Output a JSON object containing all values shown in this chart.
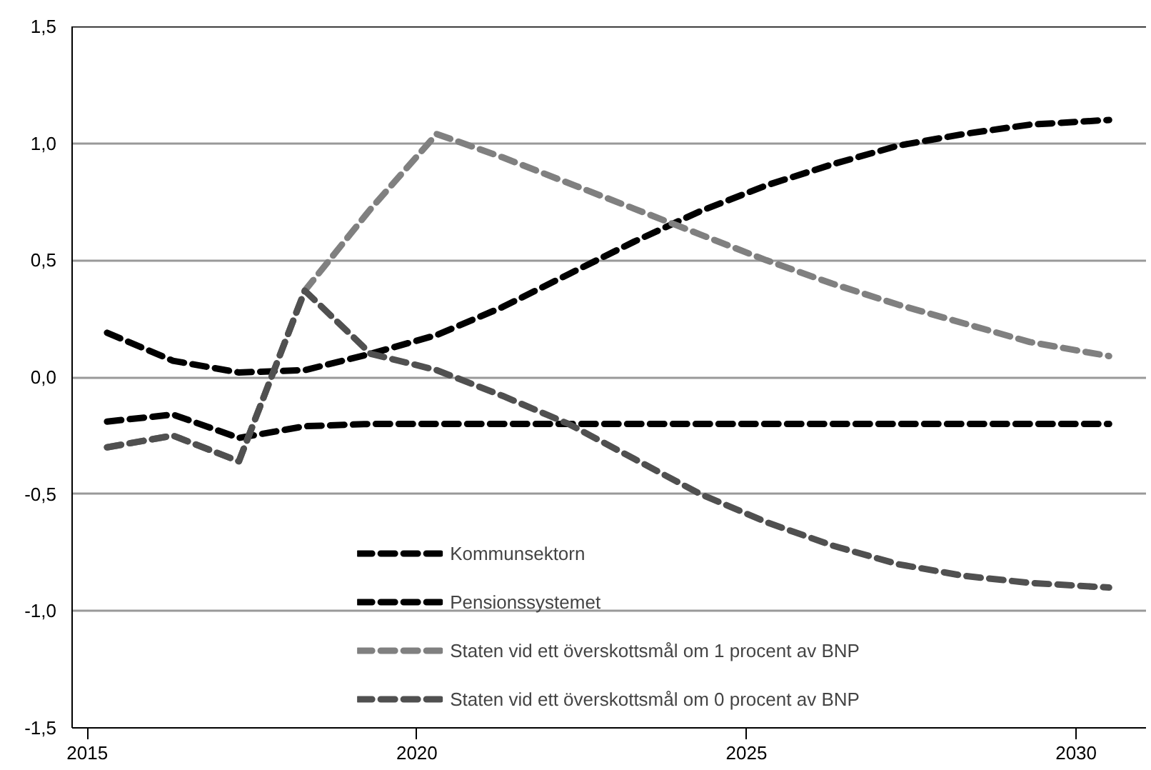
{
  "chart_data": {
    "type": "line",
    "x": [
      2015.3,
      2016.3,
      2017.3,
      2018.3,
      2019.3,
      2020.3,
      2021.3,
      2022.3,
      2023.3,
      2024.3,
      2025.3,
      2026.3,
      2027.3,
      2028.3,
      2029.3,
      2030.5
    ],
    "series": [
      {
        "name": "Kommunsektorn",
        "color": "#000000",
        "values": [
          0.19,
          0.07,
          0.02,
          0.03,
          0.1,
          0.18,
          0.3,
          0.44,
          0.58,
          0.71,
          0.82,
          0.91,
          0.99,
          1.04,
          1.08,
          1.1
        ]
      },
      {
        "name": "Pensionssystemet",
        "color": "#000000",
        "values": [
          -0.19,
          -0.16,
          -0.26,
          -0.21,
          -0.2,
          -0.2,
          -0.2,
          -0.2,
          -0.2,
          -0.2,
          -0.2,
          -0.2,
          -0.2,
          -0.2,
          -0.2,
          -0.2
        ]
      },
      {
        "name": "Staten vid ett överskottsmål om 1 procent av BNP",
        "color": "#808080",
        "values": [
          -0.3,
          -0.25,
          -0.36,
          0.37,
          0.72,
          1.04,
          0.94,
          0.83,
          0.72,
          0.61,
          0.5,
          0.4,
          0.31,
          0.23,
          0.15,
          0.09
        ]
      },
      {
        "name": "Staten vid ett överskottsmål om 0 procent av BNP",
        "color": "#505050",
        "values": [
          -0.3,
          -0.25,
          -0.36,
          0.37,
          0.1,
          0.03,
          -0.08,
          -0.2,
          -0.35,
          -0.5,
          -0.62,
          -0.72,
          -0.8,
          -0.85,
          -0.88,
          -0.9
        ]
      }
    ],
    "xlim": [
      2014.77,
      2031.06
    ],
    "xticks": [
      2015,
      2020,
      2025,
      2030
    ],
    "ylim": [
      -1.5,
      1.5
    ],
    "yticks": [
      {
        "value": -1.5,
        "label": "-1,5"
      },
      {
        "value": -1.0,
        "label": "-1,0"
      },
      {
        "value": -0.5,
        "label": "-0,5"
      },
      {
        "value": 0.0,
        "label": "0,0"
      },
      {
        "value": 0.5,
        "label": "0,5"
      },
      {
        "value": 1.0,
        "label": "1,0"
      },
      {
        "value": 1.5,
        "label": "1,5"
      }
    ],
    "grid": "y",
    "legend": "bottom",
    "line_style": "dashed",
    "marker": "none"
  }
}
